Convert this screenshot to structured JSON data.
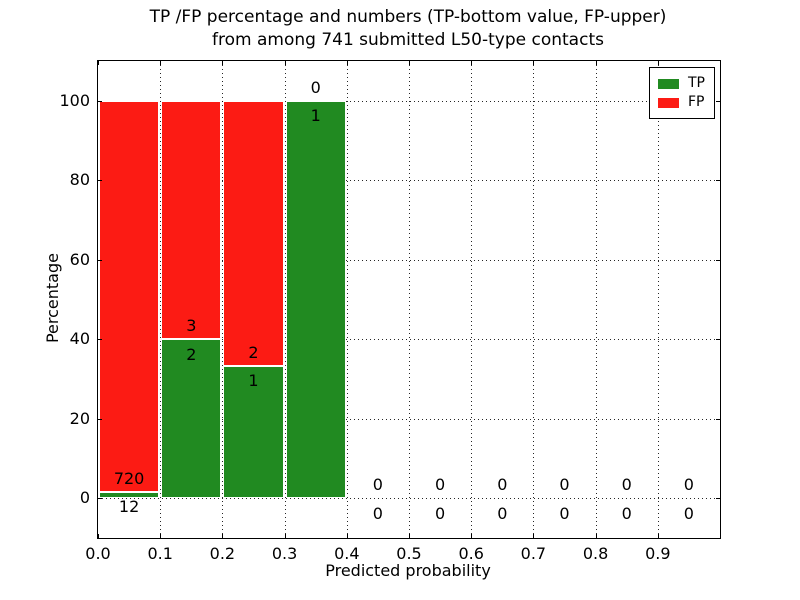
{
  "chart_data": {
    "type": "bar",
    "stacked": true,
    "title_line1": "TP /FP percentage and numbers (TP-bottom value, FP-upper)",
    "title_line2": "from among 741 submitted L50-type contacts",
    "xlabel": "Predicted probability",
    "ylabel": "Percentage",
    "xlim": [
      0.0,
      1.0
    ],
    "ylim": [
      -10,
      110
    ],
    "xticks": [
      "0.0",
      "0.1",
      "0.2",
      "0.3",
      "0.4",
      "0.5",
      "0.6",
      "0.7",
      "0.8",
      "0.9"
    ],
    "yticks": [
      0,
      20,
      40,
      60,
      80,
      100
    ],
    "grid": true,
    "legend_position": "upper right",
    "total_contacts": 741,
    "colors": {
      "tp": "#218a21",
      "fp": "#fc1b14"
    },
    "legend": [
      {
        "label": "TP",
        "key": "tp"
      },
      {
        "label": "FP",
        "key": "fp"
      }
    ],
    "bins": [
      {
        "x_range": [
          0.0,
          0.1
        ],
        "tp_count": 12,
        "fp_count": 720,
        "tp_pct": 1.64,
        "fp_pct": 98.36
      },
      {
        "x_range": [
          0.1,
          0.2
        ],
        "tp_count": 2,
        "fp_count": 3,
        "tp_pct": 40.0,
        "fp_pct": 60.0
      },
      {
        "x_range": [
          0.2,
          0.3
        ],
        "tp_count": 1,
        "fp_count": 2,
        "tp_pct": 33.33,
        "fp_pct": 66.67
      },
      {
        "x_range": [
          0.3,
          0.4
        ],
        "tp_count": 1,
        "fp_count": 0,
        "tp_pct": 100.0,
        "fp_pct": 0.0
      },
      {
        "x_range": [
          0.4,
          0.5
        ],
        "tp_count": 0,
        "fp_count": 0,
        "tp_pct": 0.0,
        "fp_pct": 0.0
      },
      {
        "x_range": [
          0.5,
          0.6
        ],
        "tp_count": 0,
        "fp_count": 0,
        "tp_pct": 0.0,
        "fp_pct": 0.0
      },
      {
        "x_range": [
          0.6,
          0.7
        ],
        "tp_count": 0,
        "fp_count": 0,
        "tp_pct": 0.0,
        "fp_pct": 0.0
      },
      {
        "x_range": [
          0.7,
          0.8
        ],
        "tp_count": 0,
        "fp_count": 0,
        "tp_pct": 0.0,
        "fp_pct": 0.0
      },
      {
        "x_range": [
          0.8,
          0.9
        ],
        "tp_count": 0,
        "fp_count": 0,
        "tp_pct": 0.0,
        "fp_pct": 0.0
      },
      {
        "x_range": [
          0.9,
          1.0
        ],
        "tp_count": 0,
        "fp_count": 0,
        "tp_pct": 0.0,
        "fp_pct": 0.0
      }
    ]
  }
}
